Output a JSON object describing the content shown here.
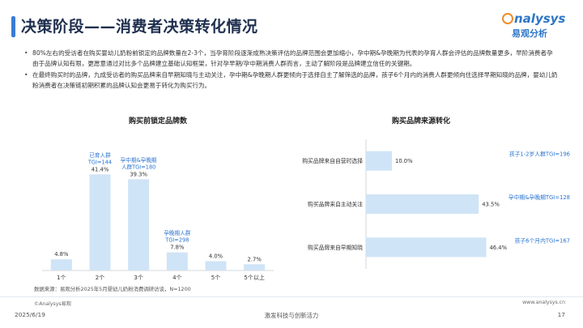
{
  "page": {
    "title": "决策阶段——消费者决策转化情况",
    "bullets": [
      "80%左右的受访者在购买婴幼儿奶粉前锁定的品牌数量在2-3个，当孕育阶段逐渐成熟决策评估的品牌范围会更加缩小，孕中期&孕晚期为代表的孕育人群会评估的品牌数量更多，早阶消费者孕由于品牌认知有限，更愿意通过对比多个品牌建立基础认知框架，针对孕早期/孕中期消费人群而言，主动了解阶段是品牌建立信任的关键期。",
      "在最终购买时的品牌，九成受访者的购买品牌来自早期知晓与主动关注，孕中期&孕晚期人群更倾向于选择自主了解筛选的品牌，孩子6个月内的消费人群更倾向住选择早期知晓的品牌，婴幼儿奶粉消费者在决策链初期积累的品牌认知会更易于转化为购买行为。"
    ],
    "source": "数据来源：易观分析2025年5月婴幼儿奶粉消费调研访谈，N=1200",
    "copyright": "©Analysys易观",
    "website": "www.analysys.cn",
    "date": "2025/6/19",
    "slogan": "激发科技与创新活力",
    "page_number": "17"
  },
  "logo": {
    "brand_en_rest": "nalysys",
    "brand_cn": "易观分析"
  },
  "chart_data": [
    {
      "type": "bar",
      "title": "购买前锁定品牌数",
      "categories": [
        "1个",
        "2个",
        "3个",
        "4个",
        "5个",
        "5个以上"
      ],
      "values": [
        4.8,
        41.4,
        39.3,
        7.8,
        4.0,
        2.7
      ],
      "value_labels": [
        "4.8%",
        "41.4%",
        "39.3%",
        "7.8%",
        "4.0%",
        "2.7%"
      ],
      "ylim": [
        0,
        45
      ],
      "grid": false,
      "annotations": [
        {
          "category": "2个",
          "lines": [
            "已育人群",
            "TGI=144"
          ]
        },
        {
          "category": "3个",
          "lines": [
            "孕中期&孕晚期",
            "人群TGI=180"
          ]
        },
        {
          "category": "4个",
          "lines": [
            "孕晚期人群",
            "TGI=298"
          ]
        }
      ],
      "colors": {
        "bar": "#cfe4f6",
        "label": "#333333",
        "annotation": "#2a74d0"
      }
    },
    {
      "type": "bar",
      "orientation": "horizontal",
      "title": "购买品牌来源转化",
      "categories": [
        "购买品牌来自自营时选择",
        "购买品牌来自主动关注",
        "购买品牌来自早期知晓"
      ],
      "values": [
        10.0,
        43.5,
        46.4
      ],
      "value_labels": [
        "10.0%",
        "43.5%",
        "46.4%"
      ],
      "xlim": [
        0,
        50
      ],
      "grid": false,
      "annotations": [
        {
          "category": "购买品牌来自自营时选择",
          "text": "孩子1-2岁人群TGI=196"
        },
        {
          "category": "购买品牌来自主动关注",
          "text": "孕中期&孕晚期TGI=128"
        },
        {
          "category": "购买品牌来自早期知晓",
          "text": "孩子6个月内TGI=167"
        }
      ],
      "colors": {
        "bar": "#cfe4f6",
        "label": "#333333",
        "annotation": "#2a74d0"
      }
    }
  ]
}
